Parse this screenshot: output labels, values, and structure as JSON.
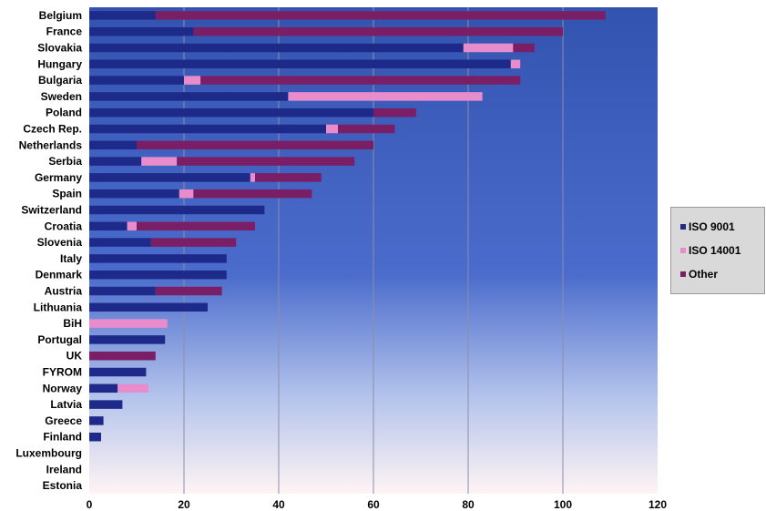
{
  "chart_data": {
    "type": "bar",
    "orientation": "horizontal",
    "stacked": true,
    "categories": [
      "Belgium",
      "France",
      "Slovakia",
      "Hungary",
      "Bulgaria",
      "Sweden",
      "Poland",
      "Czech Rep.",
      "Netherlands",
      "Serbia",
      "Germany",
      "Spain",
      "Switzerland",
      "Croatia",
      "Slovenia",
      "Italy",
      "Denmark",
      "Austria",
      "Lithuania",
      "BiH",
      "Portugal",
      "UK",
      "FYROM",
      "Norway",
      "Latvia",
      "Greece",
      "Finland",
      "Luxembourg",
      "Ireland",
      "Estonia"
    ],
    "series": [
      {
        "name": "ISO 9001",
        "color": "#1e2a8a",
        "values": [
          14,
          22,
          79,
          89,
          20,
          42,
          60,
          50,
          10,
          11,
          34,
          19,
          37,
          8,
          13,
          29,
          29,
          14,
          25,
          0,
          16,
          0,
          12,
          6,
          7,
          3,
          2.5,
          0,
          0,
          0
        ]
      },
      {
        "name": "ISO 14001",
        "color": "#e88ccc",
        "values": [
          0,
          0,
          10.5,
          2,
          3.5,
          41,
          0,
          2.5,
          0,
          7.5,
          1,
          3,
          0,
          2,
          0,
          0,
          0,
          0,
          0,
          16.5,
          0,
          0,
          0,
          6.5,
          0,
          0,
          0,
          0,
          0,
          0
        ]
      },
      {
        "name": "Other",
        "color": "#7a1f66",
        "values": [
          95,
          78,
          4.5,
          0,
          67.5,
          0,
          9,
          12,
          50,
          37.5,
          14,
          25,
          0,
          25,
          18,
          0,
          0,
          14,
          0,
          0,
          0,
          14,
          0,
          0,
          0,
          0,
          0,
          0,
          0,
          0
        ]
      }
    ],
    "xlim": [
      0,
      120
    ],
    "xticks": [
      "0",
      "20",
      "40",
      "60",
      "80",
      "100",
      "120"
    ],
    "grid": true,
    "legend_position": "right"
  },
  "legend": {
    "items": [
      {
        "label": "ISO 9001",
        "color": "#1e2a8a"
      },
      {
        "label": "ISO 14001",
        "color": "#e88ccc"
      },
      {
        "label": "Other",
        "color": "#7a1f66"
      }
    ]
  }
}
